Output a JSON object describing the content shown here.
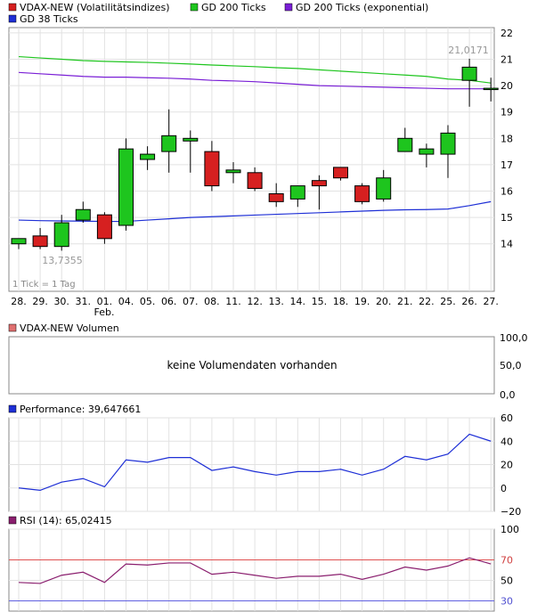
{
  "legend": [
    {
      "label": "VDAX-NEW (Volatilitätsindizes)",
      "color": "#d62020"
    },
    {
      "label": "GD 200 Ticks",
      "color": "#1ec51e"
    },
    {
      "label": "GD 200 Ticks (exponential)",
      "color": "#7a1fd6"
    },
    {
      "label": "GD 38 Ticks",
      "color": "#1e2fd6"
    }
  ],
  "tick_note": "1 Tick = 1 Tag",
  "month_label": "Feb.",
  "x_labels": [
    "28.",
    "29.",
    "30.",
    "31.",
    "01.",
    "04.",
    "05.",
    "06.",
    "07.",
    "08.",
    "11.",
    "12.",
    "13.",
    "14.",
    "15.",
    "18.",
    "19.",
    "20.",
    "21.",
    "22.",
    "25.",
    "26.",
    "27."
  ],
  "max_label": "21,0171",
  "min_label": "13,7355",
  "volume_panel": {
    "title": "VDAX-NEW Volumen",
    "no_data_text": "keine Volumendaten vorhanden",
    "y_ticks": [
      "100,0",
      "50,0",
      "0,0"
    ]
  },
  "performance_panel": {
    "title": "Performance: 39,647661",
    "color": "#1e2fd6"
  },
  "rsi_panel": {
    "title": "RSI (14): 65,02415",
    "color": "#8a1e6e"
  },
  "chart_data": [
    {
      "type": "candlestick",
      "title": "VDAX-NEW (Volatilitätsindizes)",
      "categories": [
        "28.",
        "29.",
        "30.",
        "31.",
        "01.",
        "04.",
        "05.",
        "06.",
        "07.",
        "08.",
        "11.",
        "12.",
        "13.",
        "14.",
        "15.",
        "18.",
        "19.",
        "20.",
        "21.",
        "22.",
        "25.",
        "26.",
        "27."
      ],
      "ylim": [
        12.2,
        22.2
      ],
      "y_ticks": [
        14,
        15,
        16,
        17,
        18,
        19,
        20,
        21,
        22
      ],
      "ohlc": [
        [
          14.0,
          14.2,
          13.8,
          14.2
        ],
        [
          14.3,
          14.6,
          13.8,
          13.9
        ],
        [
          13.9,
          15.1,
          13.74,
          14.8
        ],
        [
          14.9,
          15.6,
          14.8,
          15.3
        ],
        [
          15.1,
          15.2,
          14.0,
          14.2
        ],
        [
          14.7,
          18.0,
          14.5,
          17.6
        ],
        [
          17.2,
          17.7,
          16.8,
          17.4
        ],
        [
          17.5,
          19.1,
          16.7,
          18.1
        ],
        [
          17.9,
          18.3,
          16.7,
          18.0
        ],
        [
          17.5,
          17.9,
          16.0,
          16.2
        ],
        [
          16.7,
          17.1,
          16.3,
          16.8
        ],
        [
          16.7,
          16.9,
          16.0,
          16.1
        ],
        [
          15.9,
          16.3,
          15.4,
          15.6
        ],
        [
          15.7,
          16.2,
          15.4,
          16.2
        ],
        [
          16.4,
          16.6,
          15.3,
          16.2
        ],
        [
          16.9,
          16.9,
          16.4,
          16.5
        ],
        [
          16.2,
          16.3,
          15.5,
          15.6
        ],
        [
          15.7,
          16.8,
          15.6,
          16.5
        ],
        [
          17.5,
          18.4,
          17.5,
          18.0
        ],
        [
          17.4,
          17.8,
          16.9,
          17.6
        ],
        [
          17.4,
          18.5,
          16.5,
          18.2
        ],
        [
          20.2,
          21.02,
          19.2,
          20.7
        ],
        [
          19.9,
          20.3,
          19.4,
          19.9
        ]
      ],
      "series": [
        {
          "name": "GD 200 Ticks",
          "color": "#1ec51e",
          "values": [
            21.1,
            21.05,
            21.0,
            20.95,
            20.92,
            20.9,
            20.88,
            20.85,
            20.82,
            20.78,
            20.75,
            20.72,
            20.68,
            20.65,
            20.6,
            20.55,
            20.5,
            20.45,
            20.4,
            20.35,
            20.25,
            20.2,
            20.1
          ]
        },
        {
          "name": "GD 200 Ticks (exponential)",
          "color": "#7a1fd6",
          "values": [
            20.5,
            20.45,
            20.4,
            20.35,
            20.32,
            20.32,
            20.3,
            20.28,
            20.25,
            20.2,
            20.18,
            20.15,
            20.1,
            20.05,
            20.0,
            19.98,
            19.96,
            19.94,
            19.92,
            19.9,
            19.88,
            19.88,
            19.88
          ]
        },
        {
          "name": "GD 38 Ticks",
          "color": "#1e2fd6",
          "values": [
            14.9,
            14.88,
            14.87,
            14.86,
            14.85,
            14.85,
            14.9,
            14.95,
            15.0,
            15.03,
            15.06,
            15.09,
            15.12,
            15.15,
            15.18,
            15.21,
            15.24,
            15.27,
            15.29,
            15.3,
            15.32,
            15.45,
            15.6
          ]
        }
      ]
    },
    {
      "type": "line",
      "title": "Performance: 39,647661",
      "categories": [
        "28.",
        "29.",
        "30.",
        "31.",
        "01.",
        "04.",
        "05.",
        "06.",
        "07.",
        "08.",
        "11.",
        "12.",
        "13.",
        "14.",
        "15.",
        "18.",
        "19.",
        "20.",
        "21.",
        "22.",
        "25.",
        "26.",
        "27."
      ],
      "ylim": [
        -20,
        60
      ],
      "y_ticks": [
        60,
        40,
        20,
        0,
        -20
      ],
      "values": [
        0,
        -2,
        5,
        8,
        1,
        24,
        22,
        26,
        26,
        15,
        18,
        14,
        11,
        14,
        14,
        16,
        11,
        16,
        27,
        24,
        29,
        46,
        40
      ]
    },
    {
      "type": "line",
      "title": "RSI (14): 65,02415",
      "categories": [
        "28.",
        "29.",
        "30.",
        "31.",
        "01.",
        "04.",
        "05.",
        "06.",
        "07.",
        "08.",
        "11.",
        "12.",
        "13.",
        "14.",
        "15.",
        "18.",
        "19.",
        "20.",
        "21.",
        "22.",
        "25.",
        "26.",
        "27."
      ],
      "ylim": [
        20,
        100
      ],
      "y_ticks": [
        100,
        70,
        50,
        30
      ],
      "reference_lines": [
        {
          "value": 70,
          "color": "#e05050"
        },
        {
          "value": 30,
          "color": "#6060e0"
        }
      ],
      "values": [
        48,
        47,
        55,
        58,
        48,
        66,
        65,
        67,
        67,
        56,
        58,
        55,
        52,
        54,
        54,
        56,
        51,
        56,
        63,
        60,
        64,
        72,
        66
      ]
    }
  ]
}
